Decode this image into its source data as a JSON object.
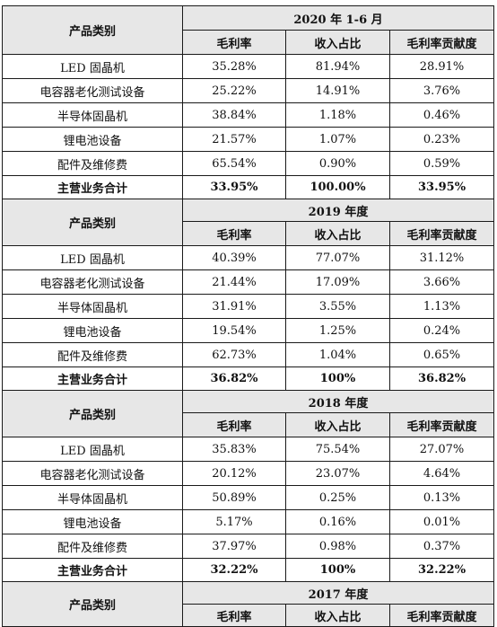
{
  "col_headers": {
    "category": "产品类别",
    "gross_margin": "毛利率",
    "revenue_share": "收入占比",
    "margin_contribution": "毛利率贡献度"
  },
  "sections": [
    {
      "period": "2020 年 1-6 月",
      "rows": [
        {
          "category": "LED 固晶机",
          "gross_margin": "35.28%",
          "revenue_share": "81.94%",
          "margin_contribution": "28.91%"
        },
        {
          "category": "电容器老化测试设备",
          "gross_margin": "25.22%",
          "revenue_share": "14.91%",
          "margin_contribution": "3.76%"
        },
        {
          "category": "半导体固晶机",
          "gross_margin": "38.84%",
          "revenue_share": "1.18%",
          "margin_contribution": "0.46%"
        },
        {
          "category": "锂电池设备",
          "gross_margin": "21.57%",
          "revenue_share": "1.07%",
          "margin_contribution": "0.23%"
        },
        {
          "category": "配件及维修费",
          "gross_margin": "65.54%",
          "revenue_share": "0.90%",
          "margin_contribution": "0.59%"
        }
      ],
      "total": {
        "category": "主营业务合计",
        "gross_margin": "33.95%",
        "revenue_share": "100.00%",
        "margin_contribution": "33.95%"
      }
    },
    {
      "period": "2019 年度",
      "rows": [
        {
          "category": "LED 固晶机",
          "gross_margin": "40.39%",
          "revenue_share": "77.07%",
          "margin_contribution": "31.12%"
        },
        {
          "category": "电容器老化测试设备",
          "gross_margin": "21.44%",
          "revenue_share": "17.09%",
          "margin_contribution": "3.66%"
        },
        {
          "category": "半导体固晶机",
          "gross_margin": "31.91%",
          "revenue_share": "3.55%",
          "margin_contribution": "1.13%"
        },
        {
          "category": "锂电池设备",
          "gross_margin": "19.54%",
          "revenue_share": "1.25%",
          "margin_contribution": "0.24%"
        },
        {
          "category": "配件及维修费",
          "gross_margin": "62.73%",
          "revenue_share": "1.04%",
          "margin_contribution": "0.65%"
        }
      ],
      "total": {
        "category": "主营业务合计",
        "gross_margin": "36.82%",
        "revenue_share": "100%",
        "margin_contribution": "36.82%"
      }
    },
    {
      "period": "2018 年度",
      "rows": [
        {
          "category": "LED 固晶机",
          "gross_margin": "35.83%",
          "revenue_share": "75.54%",
          "margin_contribution": "27.07%"
        },
        {
          "category": "电容器老化测试设备",
          "gross_margin": "20.12%",
          "revenue_share": "23.07%",
          "margin_contribution": "4.64%"
        },
        {
          "category": "半导体固晶机",
          "gross_margin": "50.89%",
          "revenue_share": "0.25%",
          "margin_contribution": "0.13%"
        },
        {
          "category": "锂电池设备",
          "gross_margin": "5.17%",
          "revenue_share": "0.16%",
          "margin_contribution": "0.01%"
        },
        {
          "category": "配件及维修费",
          "gross_margin": "37.97%",
          "revenue_share": "0.98%",
          "margin_contribution": "0.37%"
        }
      ],
      "total": {
        "category": "主营业务合计",
        "gross_margin": "32.22%",
        "revenue_share": "100%",
        "margin_contribution": "32.22%"
      }
    },
    {
      "period": "2017 年度",
      "rows": [],
      "total": null
    }
  ]
}
